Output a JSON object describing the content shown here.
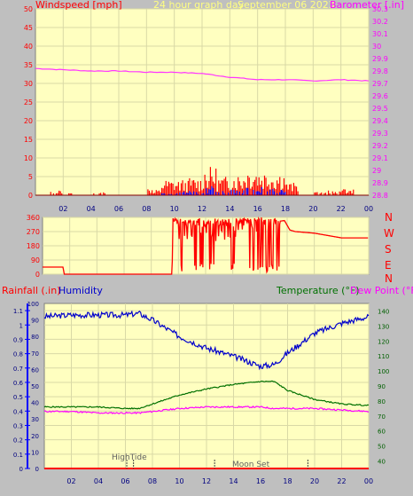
{
  "header": {
    "wind_title": "Windspeed [mph]",
    "period_title": "24 hour graph day",
    "date": "September 06 2023",
    "baro_title": "Barometer [.in]"
  },
  "colors": {
    "background": "#bfbfbf",
    "plot_bg": "#ffffc0",
    "grid": "#d9d9a6",
    "wind": "#ff0000",
    "gust": "#0000ff",
    "barometer": "#ff33ff",
    "direction": "#ff0000",
    "humidity": "#0000cc",
    "temperature": "#007000",
    "dew_point": "#ff00ff",
    "rain": "#ff0000"
  },
  "x_ticks": [
    "02",
    "04",
    "06",
    "08",
    "10",
    "12",
    "14",
    "16",
    "18",
    "20",
    "22",
    "00"
  ],
  "wind_panel": {
    "y_left_ticks": [
      "0",
      "5",
      "10",
      "15",
      "20",
      "25",
      "30",
      "35",
      "40",
      "45",
      "50"
    ],
    "y_right_ticks": [
      "28.8",
      "28.9",
      "29",
      "29.1",
      "29.2",
      "29.3",
      "29.4",
      "29.5",
      "29.6",
      "29.7",
      "29.8",
      "29.9",
      "30",
      "30.1",
      "30.2",
      "30.3"
    ]
  },
  "dir_panel": {
    "y_ticks": [
      "0",
      "90",
      "180",
      "270",
      "360"
    ],
    "compass": [
      "N",
      "W",
      "S",
      "E",
      "N"
    ]
  },
  "hum_panel": {
    "rain_title": "Rainfall (.in)",
    "humidity_title": "Humidity",
    "temp_title": "Temperature (°F)",
    "dew_title": "Dew Point (°F)",
    "y_left_ticks": [
      "0",
      "0.1",
      "0.2",
      "0.3",
      "0.4",
      "0.5",
      "0.6",
      "0.7",
      "0.8",
      "0.9",
      "1",
      "1.1"
    ],
    "y_hum_ticks": [
      "0",
      "10",
      "20",
      "30",
      "40",
      "50",
      "60",
      "70",
      "80",
      "90",
      "100"
    ],
    "y_right_ticks": [
      "40",
      "50",
      "60",
      "70",
      "80",
      "90",
      "100",
      "110",
      "120",
      "130",
      "140"
    ],
    "annotations": [
      "HighTide",
      "Moon Set"
    ]
  },
  "chart_data": [
    {
      "type": "area",
      "title": "Windspeed [mph] / Barometer [.in]",
      "x_hours": [
        0,
        24
      ],
      "ylim_wind": [
        0,
        50
      ],
      "ylim_baro": [
        28.8,
        30.3
      ],
      "series": [
        {
          "name": "Windspeed",
          "hourly_avg": [
            0,
            0.8,
            0.2,
            0,
            0.5,
            0,
            0,
            0,
            1,
            2.5,
            2.5,
            2.8,
            4.5,
            3,
            3.5,
            4.5,
            4,
            3.8,
            2,
            0,
            0.5,
            0.8,
            1,
            0
          ]
        },
        {
          "name": "Gust",
          "hourly_avg": [
            0,
            0,
            0,
            0,
            0,
            0,
            0,
            0,
            0,
            0.2,
            0.5,
            0.5,
            1,
            0.5,
            0.6,
            0.8,
            1,
            0.7,
            0,
            0,
            0,
            0,
            0,
            0
          ]
        },
        {
          "name": "Barometer",
          "x": [
            0,
            2,
            4,
            6,
            8,
            10,
            12,
            14,
            16,
            18,
            20,
            22,
            24
          ],
          "values": [
            29.82,
            29.81,
            29.8,
            29.8,
            29.79,
            29.79,
            29.78,
            29.75,
            29.73,
            29.73,
            29.72,
            29.73,
            29.72
          ]
        }
      ]
    },
    {
      "type": "line",
      "title": "Wind direction",
      "ylim": [
        0,
        360
      ],
      "x_hours": [
        0,
        24
      ],
      "series": [
        {
          "name": "Direction",
          "x": [
            0,
            1.5,
            1.6,
            9.5,
            9.7,
            10.5,
            17,
            17.8,
            18.2,
            18.6,
            20,
            22,
            24
          ],
          "values": [
            45,
            45,
            0,
            0,
            330,
            300,
            330,
            340,
            280,
            270,
            260,
            230,
            230
          ]
        }
      ]
    },
    {
      "type": "line",
      "title": "Rainfall / Humidity / Temperature / Dew Point",
      "ylim_humidity": [
        0,
        100
      ],
      "ylim_temp": [
        35,
        145
      ],
      "ylim_rain": [
        0,
        1.15
      ],
      "series": [
        {
          "name": "Humidity",
          "x": [
            0,
            2,
            4,
            6,
            7,
            8,
            10,
            12,
            14,
            16,
            17,
            18,
            20,
            22,
            24
          ],
          "values": [
            92,
            93,
            93,
            93,
            94,
            90,
            80,
            73,
            68,
            62,
            63,
            70,
            82,
            88,
            92
          ]
        },
        {
          "name": "Temperature",
          "x": [
            0,
            2,
            4,
            6,
            7,
            8,
            10,
            12,
            14,
            16,
            17,
            18,
            20,
            22,
            24
          ],
          "values": [
            76,
            76,
            76,
            75,
            75,
            78,
            84,
            88,
            91,
            93,
            93,
            87,
            81,
            78,
            77
          ]
        },
        {
          "name": "Dew Point",
          "x": [
            0,
            2,
            4,
            6,
            7,
            8,
            10,
            12,
            14,
            16,
            17,
            18,
            20,
            22,
            24
          ],
          "values": [
            73,
            73,
            72,
            72,
            72,
            73,
            75,
            76,
            76,
            76,
            75,
            75,
            75,
            74,
            73
          ]
        },
        {
          "name": "Rainfall",
          "x": [
            0,
            24
          ],
          "values": [
            0,
            0
          ]
        }
      ]
    }
  ]
}
